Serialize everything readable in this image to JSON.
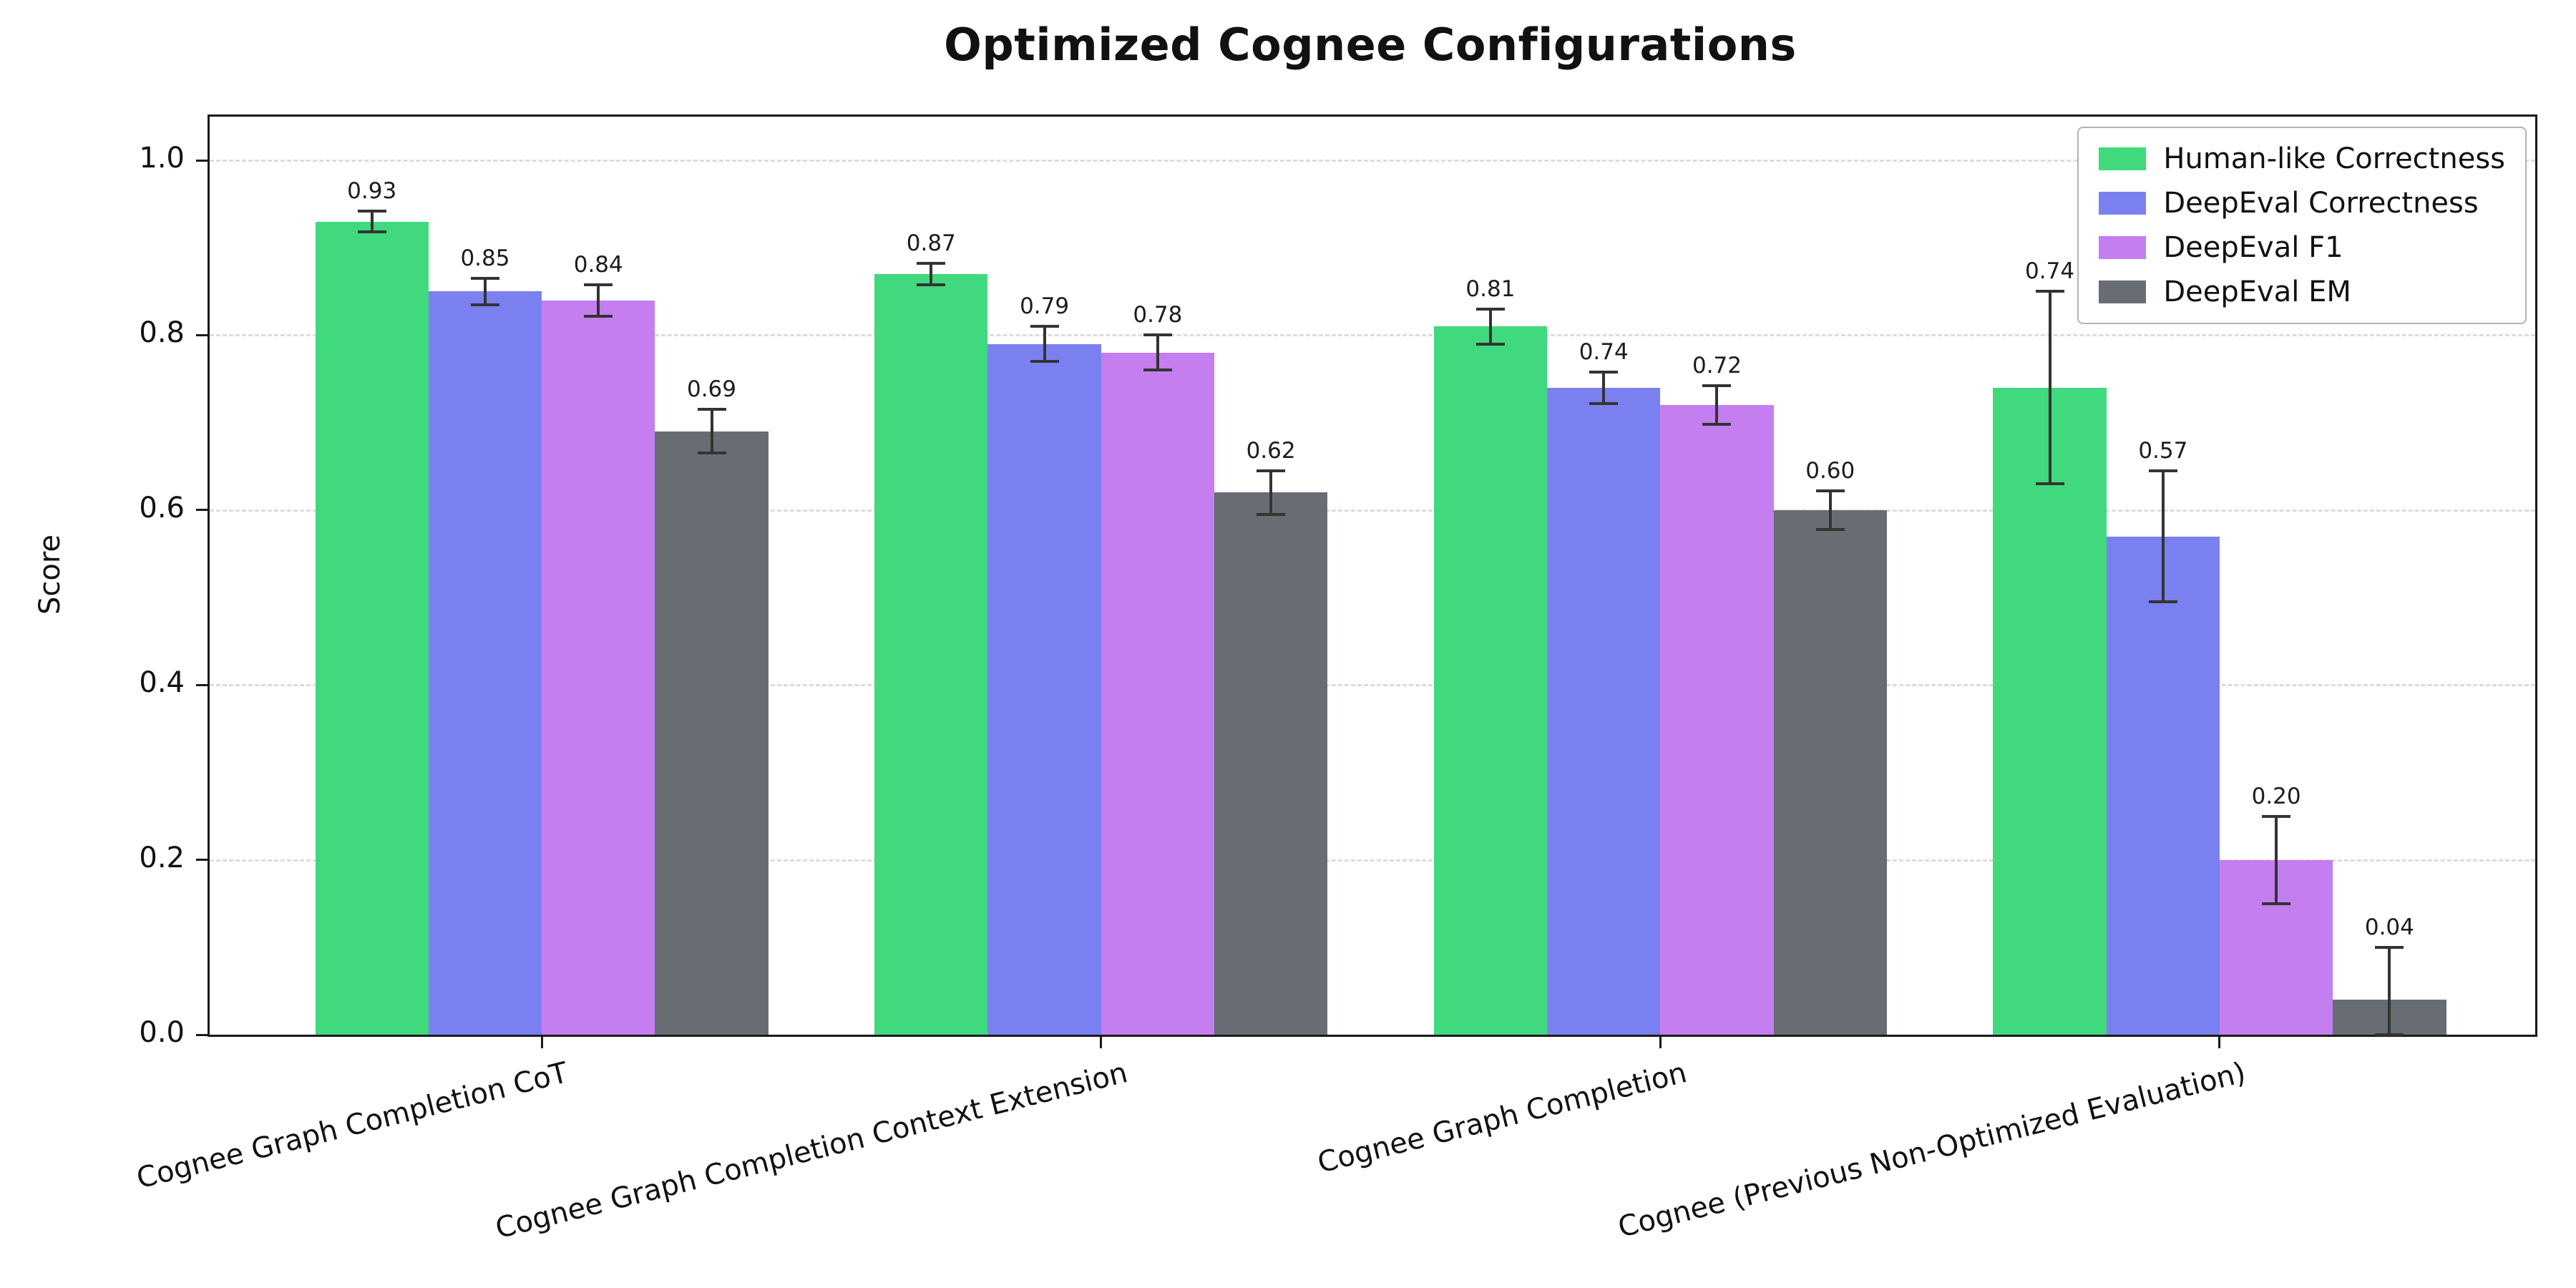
{
  "chart_data": {
    "type": "bar",
    "title": "Optimized Cognee Configurations",
    "xlabel": "",
    "ylabel": "Score",
    "ylim": [
      0,
      1.05
    ],
    "yticks": [
      0.0,
      0.2,
      0.4,
      0.6,
      0.8,
      1.0
    ],
    "grid": "horizontal-dashed",
    "legend_position": "upper-right",
    "error_bars": true,
    "categories": [
      "Cognee Graph Completion CoT",
      "Cognee Graph Completion Context Extension",
      "Cognee Graph Completion",
      "Cognee (Previous Non-Optimized Evaluation)"
    ],
    "series": [
      {
        "name": "Human-like Correctness",
        "color": "#41d97d",
        "values": [
          0.93,
          0.87,
          0.81,
          0.74
        ],
        "errors": [
          0.012,
          0.012,
          0.02,
          0.11
        ]
      },
      {
        "name": "DeepEval Correctness",
        "color": "#7b80f0",
        "values": [
          0.85,
          0.79,
          0.74,
          0.57
        ],
        "errors": [
          0.015,
          0.02,
          0.018,
          0.075
        ]
      },
      {
        "name": "DeepEval F1",
        "color": "#c47ef0",
        "values": [
          0.84,
          0.78,
          0.72,
          0.2
        ],
        "errors": [
          0.018,
          0.02,
          0.022,
          0.05
        ]
      },
      {
        "name": "DeepEval EM",
        "color": "#686d74",
        "values": [
          0.69,
          0.62,
          0.6,
          0.04
        ],
        "errors": [
          0.025,
          0.025,
          0.022,
          0.06
        ]
      }
    ],
    "colors": {
      "error_bar": "#333333",
      "axis": "#1a1a1a",
      "grid": "#dcdcdc",
      "background": "#ffffff"
    }
  }
}
